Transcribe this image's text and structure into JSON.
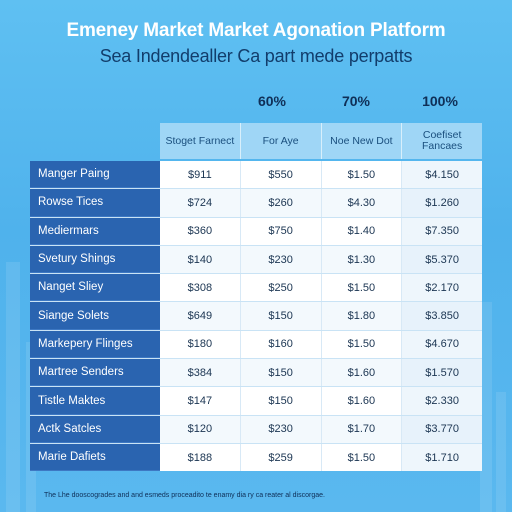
{
  "header": {
    "title": "Emeney Market Market Agonation Platform",
    "subtitle": "Sea Indendealler Ca part mede perpatts"
  },
  "percentages": [
    "60%",
    "70%",
    "100%"
  ],
  "table": {
    "columns": [
      "Stoget Farnect",
      "For Aye",
      "Noe New Dot",
      "Coefiset Fancaes"
    ],
    "rows": [
      {
        "label": "Manger Paing",
        "values": [
          "$911",
          "$550",
          "$1.50",
          "$4.150"
        ]
      },
      {
        "label": "Rowse Tices",
        "values": [
          "$724",
          "$260",
          "$4.30",
          "$1.260"
        ]
      },
      {
        "label": "Mediermars",
        "values": [
          "$360",
          "$750",
          "$1.40",
          "$7.350"
        ]
      },
      {
        "label": "Svetury Shings",
        "values": [
          "$140",
          "$230",
          "$1.30",
          "$5.370"
        ]
      },
      {
        "label": "Nanget Sliey",
        "values": [
          "$308",
          "$250",
          "$1.50",
          "$2.170"
        ]
      },
      {
        "label": "Siange Solets",
        "values": [
          "$649",
          "$150",
          "$1.80",
          "$3.850"
        ]
      },
      {
        "label": "Markepery Flinges",
        "values": [
          "$180",
          "$160",
          "$1.50",
          "$4.670"
        ]
      },
      {
        "label": "Martree Senders",
        "values": [
          "$384",
          "$150",
          "$1.60",
          "$1.570"
        ]
      },
      {
        "label": "Tistle Maktes",
        "values": [
          "$147",
          "$150",
          "$1.60",
          "$2.330"
        ]
      },
      {
        "label": "Actk Satcles",
        "values": [
          "$120",
          "$230",
          "$1.70",
          "$3.770"
        ]
      },
      {
        "label": "Marie Dafiets",
        "values": [
          "$188",
          "$259",
          "$1.50",
          "$1.710"
        ]
      }
    ]
  },
  "footnote": "The Lhe dooscogrades and and esmeds proceadito te enamy dia ry ca reater al discorgae."
}
